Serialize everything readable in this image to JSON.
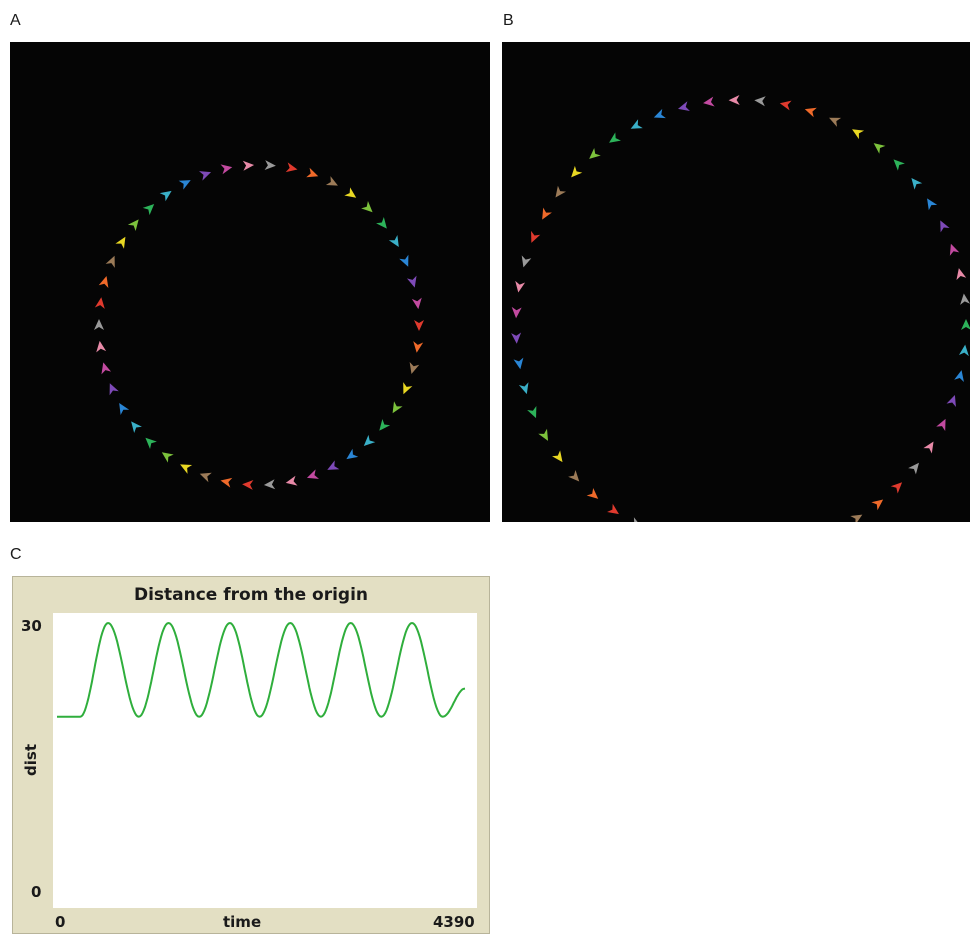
{
  "panels": {
    "a": {
      "letter": "A"
    },
    "b": {
      "letter": "B"
    },
    "c": {
      "letter": "C"
    }
  },
  "agent_colors": [
    "#e03a2e",
    "#f06a2a",
    "#9c7b58",
    "#e9d823",
    "#7cc23c",
    "#2db35a",
    "#3ab0c8",
    "#2a86d6",
    "#7e4ab8",
    "#c24aa0",
    "#e88aa8",
    "#9a9a9a"
  ],
  "view_background": "#050505",
  "chart_data": {
    "type": "line",
    "title": "Distance from the origin",
    "xlabel": "time",
    "ylabel": "dist",
    "xlim": [
      0,
      4390
    ],
    "ylim": [
      0,
      30
    ],
    "x_tick_labels": [
      "0",
      "4390"
    ],
    "y_tick_labels": [
      "0",
      "30"
    ],
    "grid": false,
    "line_color": "#2fae3c",
    "series": [
      {
        "x": [
          0,
          250,
          550,
          880,
          1200,
          1530,
          1860,
          2180,
          2510,
          2840,
          3160,
          3490,
          3820,
          4150,
          4390
        ],
        "values": [
          20,
          20,
          30,
          20,
          30,
          20,
          30,
          20,
          30,
          20,
          30,
          20,
          30,
          20,
          23
        ]
      }
    ]
  }
}
